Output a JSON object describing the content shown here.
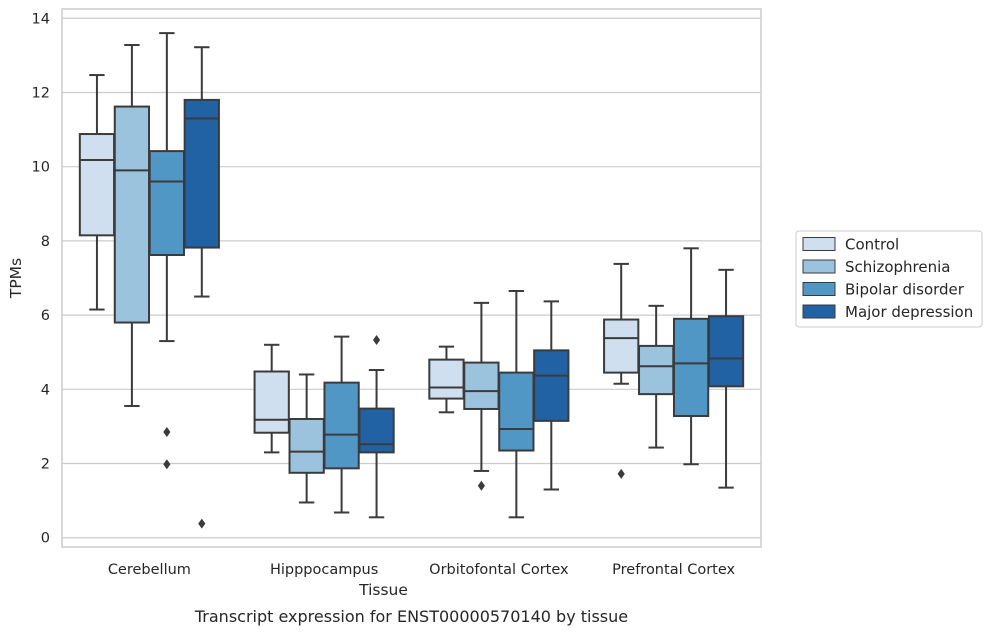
{
  "caption": "Transcript expression for ENST00000570140 by tissue",
  "chart_data": {
    "type": "box",
    "xlabel": "Tissue",
    "ylabel": "TPMs",
    "ylim": [
      -0.25,
      14.25
    ],
    "yticks": [
      0,
      2,
      4,
      6,
      8,
      10,
      12,
      14
    ],
    "grid": true,
    "legend_position": "right",
    "categories": [
      "Cerebellum",
      "Hipppocampus",
      "Orbitofontal Cortex",
      "Prefrontal Cortex"
    ],
    "series": [
      {
        "name": "Control",
        "color": "#d0dff0",
        "boxes": [
          {
            "whisker_low": 6.15,
            "q1": 8.15,
            "median": 10.18,
            "q3": 10.88,
            "whisker_high": 12.47,
            "outliers": []
          },
          {
            "whisker_low": 2.3,
            "q1": 2.83,
            "median": 3.18,
            "q3": 4.48,
            "whisker_high": 5.2,
            "outliers": []
          },
          {
            "whisker_low": 3.38,
            "q1": 3.75,
            "median": 4.05,
            "q3": 4.8,
            "whisker_high": 5.15,
            "outliers": []
          },
          {
            "whisker_low": 4.15,
            "q1": 4.45,
            "median": 5.38,
            "q3": 5.88,
            "whisker_high": 7.38,
            "outliers": [
              1.72
            ]
          }
        ]
      },
      {
        "name": "Schizophrenia",
        "color": "#9bc3de",
        "boxes": [
          {
            "whisker_low": 3.55,
            "q1": 5.8,
            "median": 9.9,
            "q3": 11.62,
            "whisker_high": 13.28,
            "outliers": []
          },
          {
            "whisker_low": 0.95,
            "q1": 1.75,
            "median": 2.32,
            "q3": 3.2,
            "whisker_high": 4.4,
            "outliers": []
          },
          {
            "whisker_low": 1.8,
            "q1": 3.47,
            "median": 3.95,
            "q3": 4.72,
            "whisker_high": 6.33,
            "outliers": [
              1.4
            ]
          },
          {
            "whisker_low": 2.43,
            "q1": 3.87,
            "median": 4.62,
            "q3": 5.17,
            "whisker_high": 6.25,
            "outliers": []
          }
        ]
      },
      {
        "name": "Bipolar disorder",
        "color": "#5097c6",
        "boxes": [
          {
            "whisker_low": 5.3,
            "q1": 7.62,
            "median": 9.6,
            "q3": 10.42,
            "whisker_high": 13.6,
            "outliers": [
              2.85,
              1.98
            ]
          },
          {
            "whisker_low": 0.68,
            "q1": 1.87,
            "median": 2.78,
            "q3": 4.18,
            "whisker_high": 5.42,
            "outliers": []
          },
          {
            "whisker_low": 0.55,
            "q1": 2.35,
            "median": 2.93,
            "q3": 4.45,
            "whisker_high": 6.65,
            "outliers": []
          },
          {
            "whisker_low": 1.98,
            "q1": 3.28,
            "median": 4.7,
            "q3": 5.9,
            "whisker_high": 7.8,
            "outliers": []
          }
        ]
      },
      {
        "name": "Major depression",
        "color": "#2062a4",
        "boxes": [
          {
            "whisker_low": 6.5,
            "q1": 7.82,
            "median": 11.3,
            "q3": 11.8,
            "whisker_high": 13.22,
            "outliers": [
              0.38
            ]
          },
          {
            "whisker_low": 0.55,
            "q1": 2.3,
            "median": 2.52,
            "q3": 3.48,
            "whisker_high": 4.52,
            "outliers": [
              5.33
            ]
          },
          {
            "whisker_low": 1.3,
            "q1": 3.15,
            "median": 4.37,
            "q3": 5.05,
            "whisker_high": 6.37,
            "outliers": []
          },
          {
            "whisker_low": 1.35,
            "q1": 4.08,
            "median": 4.83,
            "q3": 5.97,
            "whisker_high": 7.22,
            "outliers": []
          }
        ]
      }
    ]
  }
}
